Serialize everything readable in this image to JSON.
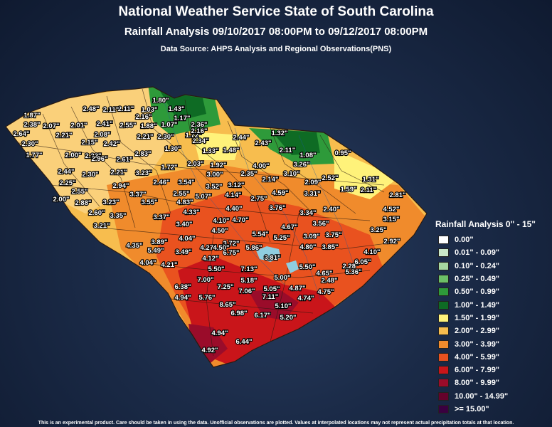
{
  "header": {
    "title": "National Weather Service State of South Carolina",
    "subtitle": "Rainfall Analysis 09/10/2017 08:00PM to 09/12/2017 08:00PM",
    "source": "Data Source: AHPS Analysis and Regional Observations(PNS)"
  },
  "legend": {
    "title": "Rainfall Analysis 0\" - 15\"",
    "items": [
      {
        "label": "0.00\"",
        "color": "#ffffff"
      },
      {
        "label": "0.01\" - 0.09\"",
        "color": "#c9e7c7"
      },
      {
        "label": "0.10\" - 0.24\"",
        "color": "#a6d8a0"
      },
      {
        "label": "0.25\" - 0.49\"",
        "color": "#6cbf67"
      },
      {
        "label": "0.50\" - 0.99\"",
        "color": "#2e9a3a"
      },
      {
        "label": "1.00\" - 1.49\"",
        "color": "#0e6b24"
      },
      {
        "label": "1.50\" - 1.99\"",
        "color": "#fff27a"
      },
      {
        "label": "2.00\" - 2.99\"",
        "color": "#f7bd4e"
      },
      {
        "label": "3.00\" - 3.99\"",
        "color": "#f08b2c"
      },
      {
        "label": "4.00\" - 5.99\"",
        "color": "#e9521f"
      },
      {
        "label": "6.00\" - 7.99\"",
        "color": "#c9151a"
      },
      {
        "label": "8.00\" - 9.99\"",
        "color": "#9a0c2a"
      },
      {
        "label": "10.00\" - 14.99\"",
        "color": "#65022b"
      },
      {
        "label": ">= 15.00\"",
        "color": "#3a0040"
      }
    ]
  },
  "observations": [
    "1.80\"",
    "2.11\"",
    "2.48\"",
    "2.11\"",
    "1.03\"",
    "1.43\"",
    "1.87\"",
    "2.16\"",
    "1.17\"",
    "2.38\"",
    "2.07\"",
    "2.01\"",
    "2.41\"",
    "2.55\"",
    "1.88\"",
    "1.07\"",
    "2.36\"",
    "2.64\"",
    "2.21\"",
    "2.08\"",
    "2.21\"",
    "2.30\"",
    "1.72\"",
    "2.16\"",
    "2.44\"",
    "1.32\"",
    "2.30\"",
    "2.15\"",
    "2.42\"",
    "2.34\"",
    "2.43\"",
    "1.77\"",
    "2.00\"",
    "2.22\"",
    "2.83\"",
    "1.30\"",
    "1.33\"",
    "1.48\"",
    "2.11\"",
    "1.08\"",
    "0.95\"",
    "2.96\"",
    "2.61\"",
    "1.72\"",
    "2.03\"",
    "1.92\"",
    "4.00\"",
    "3.26\"",
    "2.44\"",
    "2.30\"",
    "2.21\"",
    "3.23\"",
    "3.00\"",
    "2.35\"",
    "3.10\"",
    "2.52\"",
    "1.31\"",
    "2.25\"",
    "2.94\"",
    "2.46\"",
    "3.54\"",
    "3.52\"",
    "3.12\"",
    "2.14\"",
    "2.09\"",
    "1.59\"",
    "2.11\"",
    "2.81\"",
    "2.55\"",
    "3.37\"",
    "2.55\"",
    "5.07\"",
    "4.14\"",
    "2.75\"",
    "4.59\"",
    "3.31\"",
    "2.00\"",
    "2.88\"",
    "3.23\"",
    "3.55\"",
    "4.83\"",
    "2.60\"",
    "4.33\"",
    "4.40\"",
    "3.76\"",
    "2.40\"",
    "4.52\"",
    "3.35\"",
    "3.37\"",
    "4.10\"",
    "4.70\"",
    "3.34\"",
    "3.15\"",
    "3.21\"",
    "3.40\"",
    "4.50\"",
    "5.54\"",
    "4.67\"",
    "3.56\"",
    "3.25\"",
    "4.04\"",
    "3.72\"",
    "5.25\"",
    "3.09\"",
    "3.75\"",
    "2.92\"",
    "4.35\"",
    "3.89\"",
    "4.27\"",
    "4.50\"",
    "5.86\"",
    "4.80\"",
    "3.85\"",
    "5.49\"",
    "3.49\"",
    "6.75\"",
    "3.81\"",
    "4.10\"",
    "4.04\"",
    "4.21\"",
    "4.12\"",
    "5.50\"",
    "7.13\"",
    "5.50\"",
    "2.28\"",
    "6.05\"",
    "5.00\"",
    "4.65\"",
    "5.36\"",
    "7.00\"",
    "5.18\"",
    "6.38\"",
    "7.25\"",
    "5.05\"",
    "4.87\"",
    "2.48\"",
    "4.94\"",
    "5.76\"",
    "7.06\"",
    "7.11\"",
    "4.74\"",
    "4.75\"",
    "8.65\"",
    "5.10\"",
    "6.98\"",
    "6.17\"",
    "5.20\"",
    "4.94\"",
    "6.44\"",
    "4.92\""
  ],
  "footer": {
    "disclaimer": "This is an experimental product. Care should be taken in using the data. Unofficial observations are plotted. Values at interpolated locations may not represent actual precipitation totals at that location."
  }
}
